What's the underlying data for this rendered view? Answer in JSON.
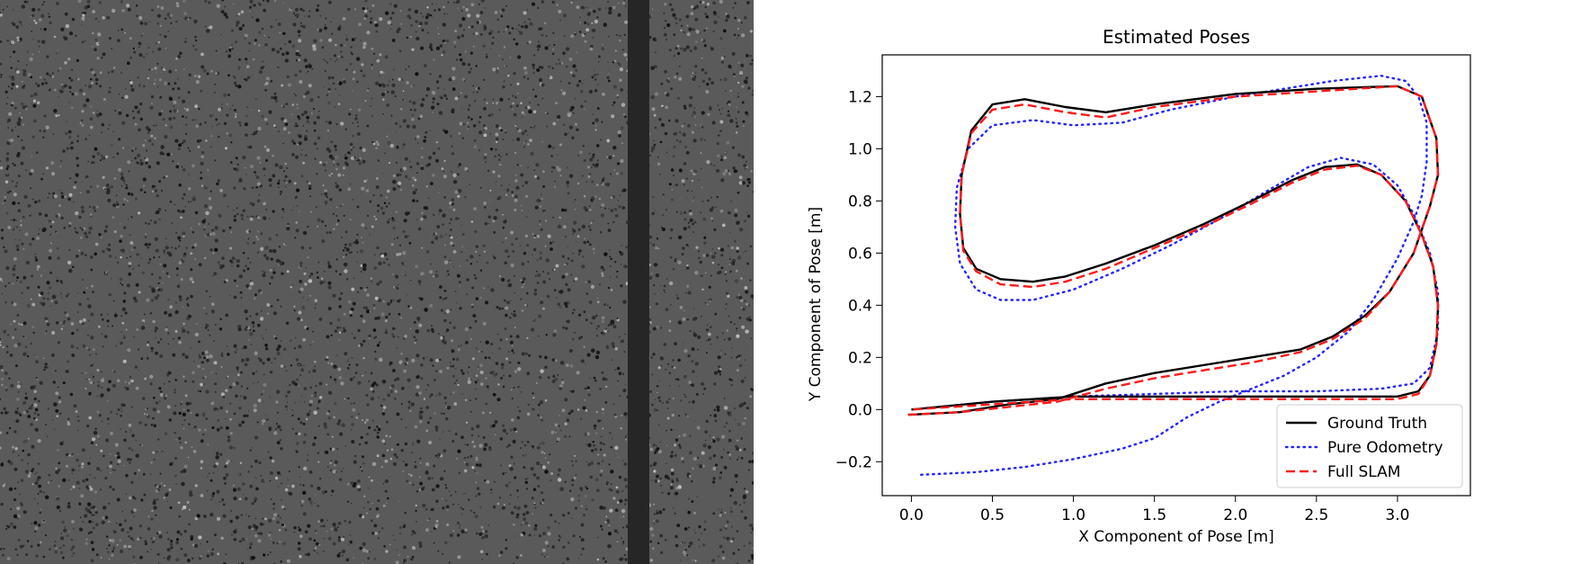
{
  "colors": {
    "ground_truth": "#000000",
    "pure_odometry": "#2323ff",
    "full_slam": "#ff1a1a",
    "floor": "#5a5a5a",
    "tape": "#262626"
  },
  "camera_view": {
    "content": "grayscale speckled floor texture with vertical dark tape strip"
  },
  "chart_data": {
    "type": "line",
    "title": "Estimated Poses",
    "xlabel": "X Component of Pose [m]",
    "ylabel": "Y Component of Pose [m]",
    "xlim": [
      -0.18,
      3.45
    ],
    "ylim": [
      -0.33,
      1.36
    ],
    "xticks": [
      0.0,
      0.5,
      1.0,
      1.5,
      2.0,
      2.5,
      3.0
    ],
    "xtick_labels": [
      "0.0",
      "0.5",
      "1.0",
      "1.5",
      "2.0",
      "2.5",
      "3.0"
    ],
    "yticks": [
      -0.2,
      0.0,
      0.2,
      0.4,
      0.6,
      0.8,
      1.0,
      1.2
    ],
    "ytick_labels": [
      "−0.2",
      "0.0",
      "0.2",
      "0.4",
      "0.6",
      "0.8",
      "1.0",
      "1.2"
    ],
    "legend_position": "lower-right",
    "series": [
      {
        "name": "Ground Truth",
        "style": "solid",
        "points": [
          [
            -0.02,
            -0.02
          ],
          [
            0.3,
            -0.01
          ],
          [
            0.6,
            0.02
          ],
          [
            0.9,
            0.04
          ],
          [
            1.2,
            0.1
          ],
          [
            1.5,
            0.14
          ],
          [
            1.8,
            0.17
          ],
          [
            2.1,
            0.2
          ],
          [
            2.4,
            0.23
          ],
          [
            2.6,
            0.28
          ],
          [
            2.8,
            0.36
          ],
          [
            2.95,
            0.45
          ],
          [
            3.1,
            0.6
          ],
          [
            3.2,
            0.78
          ],
          [
            3.25,
            0.9
          ],
          [
            3.24,
            1.04
          ],
          [
            3.15,
            1.2
          ],
          [
            3.0,
            1.24
          ],
          [
            2.5,
            1.23
          ],
          [
            2.0,
            1.21
          ],
          [
            1.5,
            1.17
          ],
          [
            1.2,
            1.14
          ],
          [
            0.95,
            1.16
          ],
          [
            0.7,
            1.19
          ],
          [
            0.5,
            1.17
          ],
          [
            0.37,
            1.07
          ],
          [
            0.31,
            0.9
          ],
          [
            0.3,
            0.75
          ],
          [
            0.32,
            0.62
          ],
          [
            0.4,
            0.54
          ],
          [
            0.55,
            0.5
          ],
          [
            0.75,
            0.49
          ],
          [
            0.95,
            0.51
          ],
          [
            1.2,
            0.56
          ],
          [
            1.5,
            0.63
          ],
          [
            1.8,
            0.71
          ],
          [
            2.1,
            0.8
          ],
          [
            2.35,
            0.88
          ],
          [
            2.55,
            0.93
          ],
          [
            2.75,
            0.94
          ],
          [
            2.9,
            0.9
          ],
          [
            3.05,
            0.8
          ],
          [
            3.15,
            0.67
          ],
          [
            3.22,
            0.55
          ],
          [
            3.25,
            0.4
          ],
          [
            3.24,
            0.25
          ],
          [
            3.2,
            0.13
          ],
          [
            3.13,
            0.07
          ],
          [
            3.0,
            0.05
          ],
          [
            2.6,
            0.05
          ],
          [
            2.0,
            0.05
          ],
          [
            1.5,
            0.05
          ],
          [
            1.0,
            0.05
          ],
          [
            0.5,
            0.03
          ],
          [
            0.0,
            0.0
          ]
        ]
      },
      {
        "name": "Pure Odometry",
        "style": "dotted",
        "points": [
          [
            0.06,
            -0.25
          ],
          [
            0.4,
            -0.24
          ],
          [
            0.7,
            -0.22
          ],
          [
            1.0,
            -0.19
          ],
          [
            1.3,
            -0.15
          ],
          [
            1.5,
            -0.11
          ],
          [
            1.7,
            -0.03
          ],
          [
            1.9,
            0.03
          ],
          [
            2.1,
            0.08
          ],
          [
            2.3,
            0.13
          ],
          [
            2.5,
            0.2
          ],
          [
            2.7,
            0.3
          ],
          [
            2.85,
            0.42
          ],
          [
            3.0,
            0.58
          ],
          [
            3.1,
            0.72
          ],
          [
            3.15,
            0.82
          ],
          [
            3.18,
            0.95
          ],
          [
            3.18,
            1.1
          ],
          [
            3.13,
            1.2
          ],
          [
            3.05,
            1.26
          ],
          [
            2.9,
            1.28
          ],
          [
            2.6,
            1.26
          ],
          [
            2.3,
            1.23
          ],
          [
            2.0,
            1.2
          ],
          [
            1.6,
            1.15
          ],
          [
            1.3,
            1.1
          ],
          [
            1.0,
            1.09
          ],
          [
            0.75,
            1.11
          ],
          [
            0.5,
            1.09
          ],
          [
            0.35,
            1.0
          ],
          [
            0.28,
            0.85
          ],
          [
            0.27,
            0.7
          ],
          [
            0.3,
            0.56
          ],
          [
            0.4,
            0.46
          ],
          [
            0.55,
            0.42
          ],
          [
            0.75,
            0.42
          ],
          [
            1.0,
            0.46
          ],
          [
            1.3,
            0.54
          ],
          [
            1.6,
            0.63
          ],
          [
            1.9,
            0.73
          ],
          [
            2.2,
            0.84
          ],
          [
            2.45,
            0.93
          ],
          [
            2.65,
            0.965
          ],
          [
            2.85,
            0.94
          ],
          [
            3.0,
            0.86
          ],
          [
            3.1,
            0.75
          ],
          [
            3.2,
            0.6
          ],
          [
            3.25,
            0.45
          ],
          [
            3.25,
            0.3
          ],
          [
            3.2,
            0.16
          ],
          [
            3.1,
            0.1
          ],
          [
            2.9,
            0.08
          ],
          [
            2.5,
            0.07
          ],
          [
            2.0,
            0.07
          ],
          [
            1.5,
            0.06
          ],
          [
            1.0,
            0.05
          ],
          [
            0.5,
            0.03
          ],
          [
            0.0,
            0.0
          ]
        ]
      },
      {
        "name": "Full SLAM",
        "style": "dashed",
        "points": [
          [
            -0.02,
            -0.02
          ],
          [
            0.3,
            -0.01
          ],
          [
            0.6,
            0.01
          ],
          [
            0.9,
            0.03
          ],
          [
            1.2,
            0.08
          ],
          [
            1.5,
            0.12
          ],
          [
            1.8,
            0.15
          ],
          [
            2.1,
            0.18
          ],
          [
            2.4,
            0.22
          ],
          [
            2.6,
            0.27
          ],
          [
            2.8,
            0.35
          ],
          [
            2.95,
            0.45
          ],
          [
            3.1,
            0.6
          ],
          [
            3.2,
            0.78
          ],
          [
            3.25,
            0.9
          ],
          [
            3.24,
            1.04
          ],
          [
            3.15,
            1.2
          ],
          [
            3.0,
            1.24
          ],
          [
            2.5,
            1.22
          ],
          [
            2.0,
            1.2
          ],
          [
            1.5,
            1.16
          ],
          [
            1.2,
            1.12
          ],
          [
            0.95,
            1.14
          ],
          [
            0.7,
            1.17
          ],
          [
            0.5,
            1.15
          ],
          [
            0.37,
            1.06
          ],
          [
            0.31,
            0.9
          ],
          [
            0.3,
            0.75
          ],
          [
            0.32,
            0.61
          ],
          [
            0.4,
            0.53
          ],
          [
            0.55,
            0.48
          ],
          [
            0.75,
            0.47
          ],
          [
            0.95,
            0.49
          ],
          [
            1.2,
            0.54
          ],
          [
            1.5,
            0.62
          ],
          [
            1.8,
            0.7
          ],
          [
            2.1,
            0.79
          ],
          [
            2.35,
            0.87
          ],
          [
            2.55,
            0.92
          ],
          [
            2.75,
            0.935
          ],
          [
            2.9,
            0.9
          ],
          [
            3.05,
            0.8
          ],
          [
            3.15,
            0.67
          ],
          [
            3.22,
            0.55
          ],
          [
            3.25,
            0.4
          ],
          [
            3.24,
            0.25
          ],
          [
            3.2,
            0.13
          ],
          [
            3.13,
            0.06
          ],
          [
            3.0,
            0.04
          ],
          [
            2.6,
            0.04
          ],
          [
            2.0,
            0.04
          ],
          [
            1.5,
            0.04
          ],
          [
            1.0,
            0.04
          ],
          [
            0.5,
            0.02
          ],
          [
            0.0,
            0.0
          ]
        ]
      }
    ]
  }
}
